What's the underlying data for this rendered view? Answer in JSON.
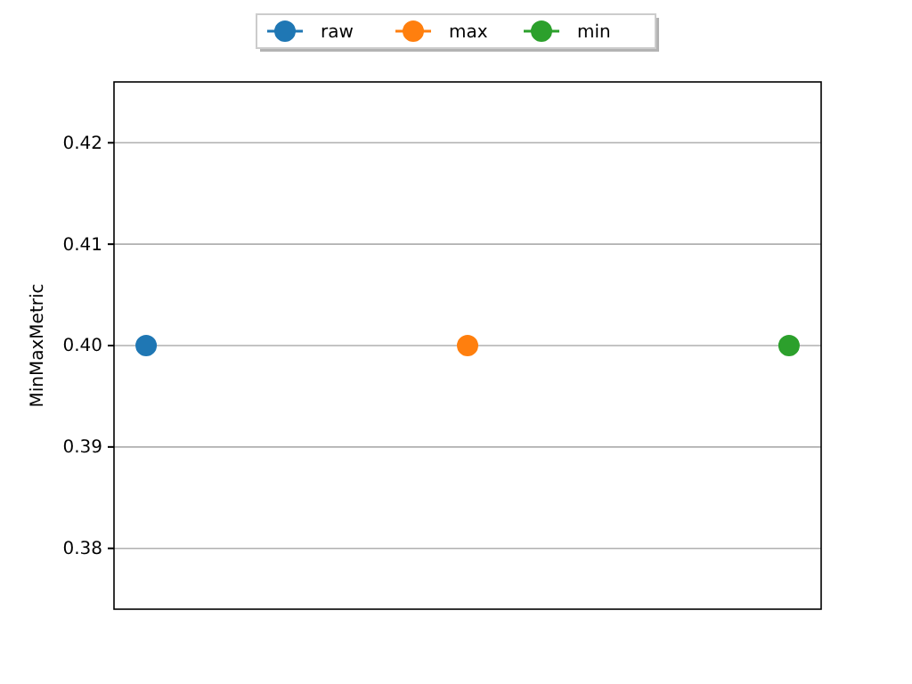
{
  "chart_data": {
    "type": "line",
    "ylabel": "MinMaxMetric",
    "categories": [
      null,
      null,
      null,
      null,
      null,
      null,
      null,
      null,
      null,
      null,
      null
    ],
    "series": [
      {
        "name": "raw",
        "color": "#1f77b4",
        "values": [
          0.4,
          null,
          null,
          null,
          null,
          null,
          null,
          null,
          null,
          null,
          null
        ]
      },
      {
        "name": "max",
        "color": "#ff7f0e",
        "values": [
          null,
          null,
          null,
          null,
          null,
          0.4,
          null,
          null,
          null,
          null,
          null
        ]
      },
      {
        "name": "min",
        "color": "#2ca02c",
        "values": [
          null,
          null,
          null,
          null,
          null,
          null,
          null,
          null,
          null,
          null,
          0.4
        ]
      }
    ],
    "ylim": [
      0.374,
      0.426
    ],
    "yticks": [
      {
        "value": 0.38,
        "label": "0.38"
      },
      {
        "value": 0.39,
        "label": "0.39"
      },
      {
        "value": 0.4,
        "label": "0.40"
      },
      {
        "value": 0.41,
        "label": "0.41"
      },
      {
        "value": 0.42,
        "label": "0.42"
      }
    ],
    "grid": "y",
    "legend": "top",
    "marker": "circle",
    "line_style": "solid",
    "tick_labels": "y"
  }
}
